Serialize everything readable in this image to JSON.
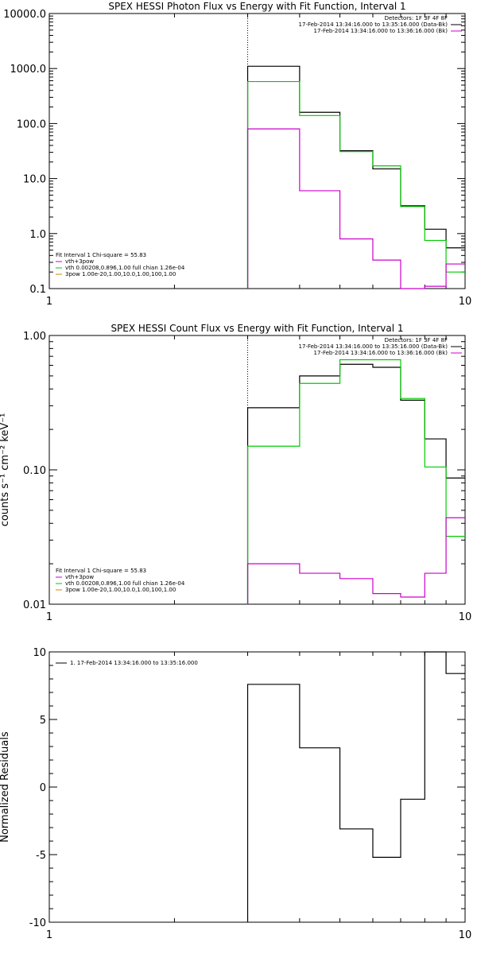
{
  "chart_data": [
    {
      "type": "line",
      "title": "SPEX HESSI Photon Flux vs Energy with Fit Function, Interval 1",
      "ylabel": "",
      "x_scale": "log",
      "y_scale": "log",
      "xlim": [
        1,
        10
      ],
      "ylim": [
        0.1,
        10000
      ],
      "x_ticks": [
        {
          "v": 1,
          "label": "1"
        },
        {
          "v": 10,
          "label": "10"
        }
      ],
      "y_ticks": [
        {
          "v": 0.1,
          "label": "0.1"
        },
        {
          "v": 1,
          "label": "1.0"
        },
        {
          "v": 10,
          "label": "10.0"
        },
        {
          "v": 100,
          "label": "100.0"
        },
        {
          "v": 1000,
          "label": "1000.0"
        },
        {
          "v": 10000,
          "label": "10000.0"
        }
      ],
      "vline": 3,
      "bin_edges": [
        3,
        4,
        5,
        6,
        7,
        8,
        9,
        10
      ],
      "series": [
        {
          "color": "#000000",
          "values": [
            1100,
            160,
            32,
            15,
            3.2,
            1.2,
            0.55
          ]
        },
        {
          "color": "#00cc00",
          "values": [
            580,
            140,
            31,
            17,
            3.1,
            0.75,
            0.2
          ]
        },
        {
          "color": "#cc00cc",
          "values": [
            80,
            6,
            0.8,
            0.33,
            0.1,
            0.11,
            0.28
          ]
        }
      ],
      "header_legend": [
        {
          "text": "Detectors: 1F 3F 4F 8F",
          "color": ""
        },
        {
          "text": "17-Feb-2014 13:34:16.000 to 13:35:16.000 (Data-Bk)",
          "color": "#000000"
        },
        {
          "text": "17-Feb-2014 13:34:16.000 to 13:36:16.000 (Bk)",
          "color": "#cc00cc"
        }
      ],
      "fit_legend": [
        {
          "text": "Fit Interval 1   Chi-square = 55.83",
          "color": ""
        },
        {
          "text": "vth+3pow",
          "color": "#cc00cc"
        },
        {
          "text": "vth 0.00208,0.896,1.00  full chian 1.26e-04",
          "color": "#00cc00"
        },
        {
          "text": "3pow 1.00e-20,1.00,10.0,1.00,100,1.00",
          "color": "#cc8800"
        }
      ]
    },
    {
      "type": "line",
      "title": "SPEX HESSI Count Flux vs Energy with Fit Function, Interval 1",
      "ylabel": "counts s⁻¹ cm⁻² keV⁻¹",
      "x_scale": "log",
      "y_scale": "log",
      "xlim": [
        1,
        10
      ],
      "ylim": [
        0.01,
        1.0
      ],
      "x_ticks": [
        {
          "v": 1,
          "label": "1"
        },
        {
          "v": 10,
          "label": "10"
        }
      ],
      "y_ticks": [
        {
          "v": 0.01,
          "label": "0.01"
        },
        {
          "v": 0.1,
          "label": "0.10"
        },
        {
          "v": 1,
          "label": "1.00"
        }
      ],
      "vline": 3,
      "bin_edges": [
        3,
        4,
        5,
        6,
        7,
        8,
        9,
        10
      ],
      "series": [
        {
          "color": "#000000",
          "values": [
            0.29,
            0.5,
            0.61,
            0.58,
            0.33,
            0.17,
            0.087
          ]
        },
        {
          "color": "#00cc00",
          "values": [
            0.15,
            0.44,
            0.66,
            0.66,
            0.34,
            0.105,
            0.032
          ]
        },
        {
          "color": "#cc00cc",
          "values": [
            0.02,
            0.017,
            0.0155,
            0.012,
            0.0113,
            0.017,
            0.044
          ]
        }
      ],
      "header_legend": [
        {
          "text": "Detectors: 1F 3F 4F 8F",
          "color": ""
        },
        {
          "text": "17-Feb-2014 13:34:16.000 to 13:35:16.000 (Data-Bk)",
          "color": "#000000"
        },
        {
          "text": "17-Feb-2014 13:34:16.000 to 13:36:16.000 (Bk)",
          "color": "#cc00cc"
        }
      ],
      "fit_legend": [
        {
          "text": "Fit Interval 1   Chi-square = 55.83",
          "color": ""
        },
        {
          "text": "vth+3pow",
          "color": "#cc00cc"
        },
        {
          "text": "vth 0.00208,0.896,1.00  full chian 1.26e-04",
          "color": "#00cc00"
        },
        {
          "text": "3pow 1.00e-20,1.00,10.0,1.00,100,1.00",
          "color": "#cc8800"
        }
      ]
    },
    {
      "type": "line",
      "title": "",
      "ylabel": "Normalized Residuals",
      "x_scale": "log",
      "y_scale": "linear",
      "xlim": [
        1,
        10
      ],
      "ylim": [
        -10,
        10
      ],
      "x_ticks": [
        {
          "v": 1,
          "label": "1"
        },
        {
          "v": 10,
          "label": "10"
        }
      ],
      "y_ticks": [
        {
          "v": -10,
          "label": "-10"
        },
        {
          "v": -5,
          "label": "-5"
        },
        {
          "v": 0,
          "label": "0"
        },
        {
          "v": 5,
          "label": "5"
        },
        {
          "v": 10,
          "label": "10"
        }
      ],
      "vline": null,
      "bin_edges": [
        3,
        4,
        5,
        6,
        7,
        8,
        9,
        10
      ],
      "series": [
        {
          "color": "#000000",
          "values": [
            7.6,
            2.9,
            -3.1,
            -5.2,
            -0.9,
            10,
            8.4
          ]
        }
      ],
      "header_legend": [
        {
          "text": "1. 17-Feb-2014 13:34:16.000 to 13:35:16.000",
          "color": "#000000"
        }
      ],
      "fit_legend": []
    }
  ]
}
